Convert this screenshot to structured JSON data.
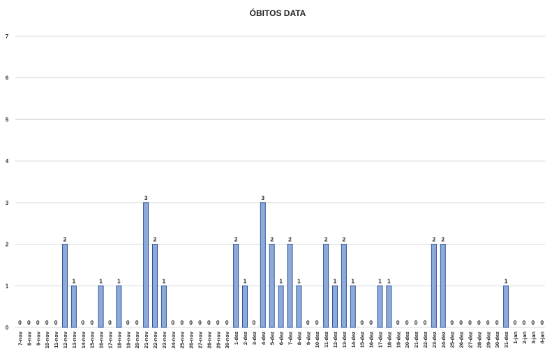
{
  "chart_data": {
    "type": "bar",
    "title": "ÓBITOS DATA",
    "xlabel": "",
    "ylabel": "",
    "ylim": [
      0,
      7
    ],
    "yticks": [
      0,
      1,
      2,
      3,
      4,
      5,
      6,
      7
    ],
    "grid": true,
    "legend": "none",
    "bar_color": "#8eaadb",
    "bar_edge_color": "#2f5597",
    "categories": [
      "7-nov",
      "8-nov",
      "9-nov",
      "10-nov",
      "11-nov",
      "12-nov",
      "13-nov",
      "14-nov",
      "15-nov",
      "16-nov",
      "17-nov",
      "18-nov",
      "19-nov",
      "20-nov",
      "21-nov",
      "22-nov",
      "23-nov",
      "24-nov",
      "25-nov",
      "26-nov",
      "27-nov",
      "28-nov",
      "29-nov",
      "30-nov",
      "1-dez",
      "2-dez",
      "3-dez",
      "4-dez",
      "5-dez",
      "6-dez",
      "7-dez",
      "8-dez",
      "9-dez",
      "10-dez",
      "11-dez",
      "12-dez",
      "13-dez",
      "14-dez",
      "15-dez",
      "16-dez",
      "17-dez",
      "18-dez",
      "19-dez",
      "20-dez",
      "21-dez",
      "22-dez",
      "23-dez",
      "24-dez",
      "25-dez",
      "26-dez",
      "27-dez",
      "28-dez",
      "29-dez",
      "30-dez",
      "31-dez",
      "1-jan",
      "2-jan",
      "3-jan",
      "4-jan"
    ],
    "values": [
      0,
      0,
      0,
      0,
      0,
      2,
      1,
      0,
      0,
      1,
      0,
      1,
      0,
      0,
      3,
      2,
      1,
      0,
      0,
      0,
      0,
      0,
      0,
      0,
      2,
      1,
      0,
      3,
      2,
      1,
      2,
      1,
      0,
      0,
      2,
      1,
      2,
      1,
      0,
      0,
      1,
      1,
      0,
      0,
      0,
      0,
      2,
      2,
      0,
      0,
      0,
      0,
      0,
      0,
      1,
      0,
      0,
      0,
      0
    ]
  }
}
